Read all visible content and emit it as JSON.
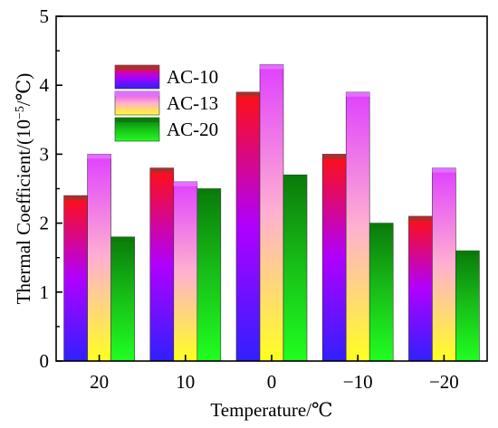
{
  "chart_data": {
    "type": "bar",
    "title": "",
    "xlabel": "Temperature/℃",
    "ylabel_prefix": "Thermal Coefficient/(10",
    "ylabel_exp": "−5",
    "ylabel_suffix": "/℃)",
    "categories": [
      "20",
      "10",
      "0",
      "−10",
      "−20"
    ],
    "ylim": [
      0,
      5
    ],
    "yticks": [
      "0",
      "1",
      "2",
      "3",
      "4",
      "5"
    ],
    "legend_position": "top-left",
    "grid": false,
    "series": [
      {
        "name": "AC-10",
        "values": [
          2.4,
          2.8,
          3.9,
          3.0,
          2.1
        ],
        "gradient": [
          "#ff1010",
          "#b000ff",
          "#3020ff"
        ],
        "cap": "#a83030"
      },
      {
        "name": "AC-13",
        "values": [
          3.0,
          2.6,
          4.3,
          3.9,
          2.8
        ],
        "gradient": [
          "#e040ff",
          "#ffb0d0",
          "#ffff20"
        ],
        "cap": "#e070ff"
      },
      {
        "name": "AC-20",
        "values": [
          1.8,
          2.5,
          2.7,
          2.0,
          1.6
        ],
        "gradient": [
          "#0a7a0a",
          "#18c018",
          "#20ff20"
        ],
        "cap": "#0a7a0a"
      }
    ]
  }
}
